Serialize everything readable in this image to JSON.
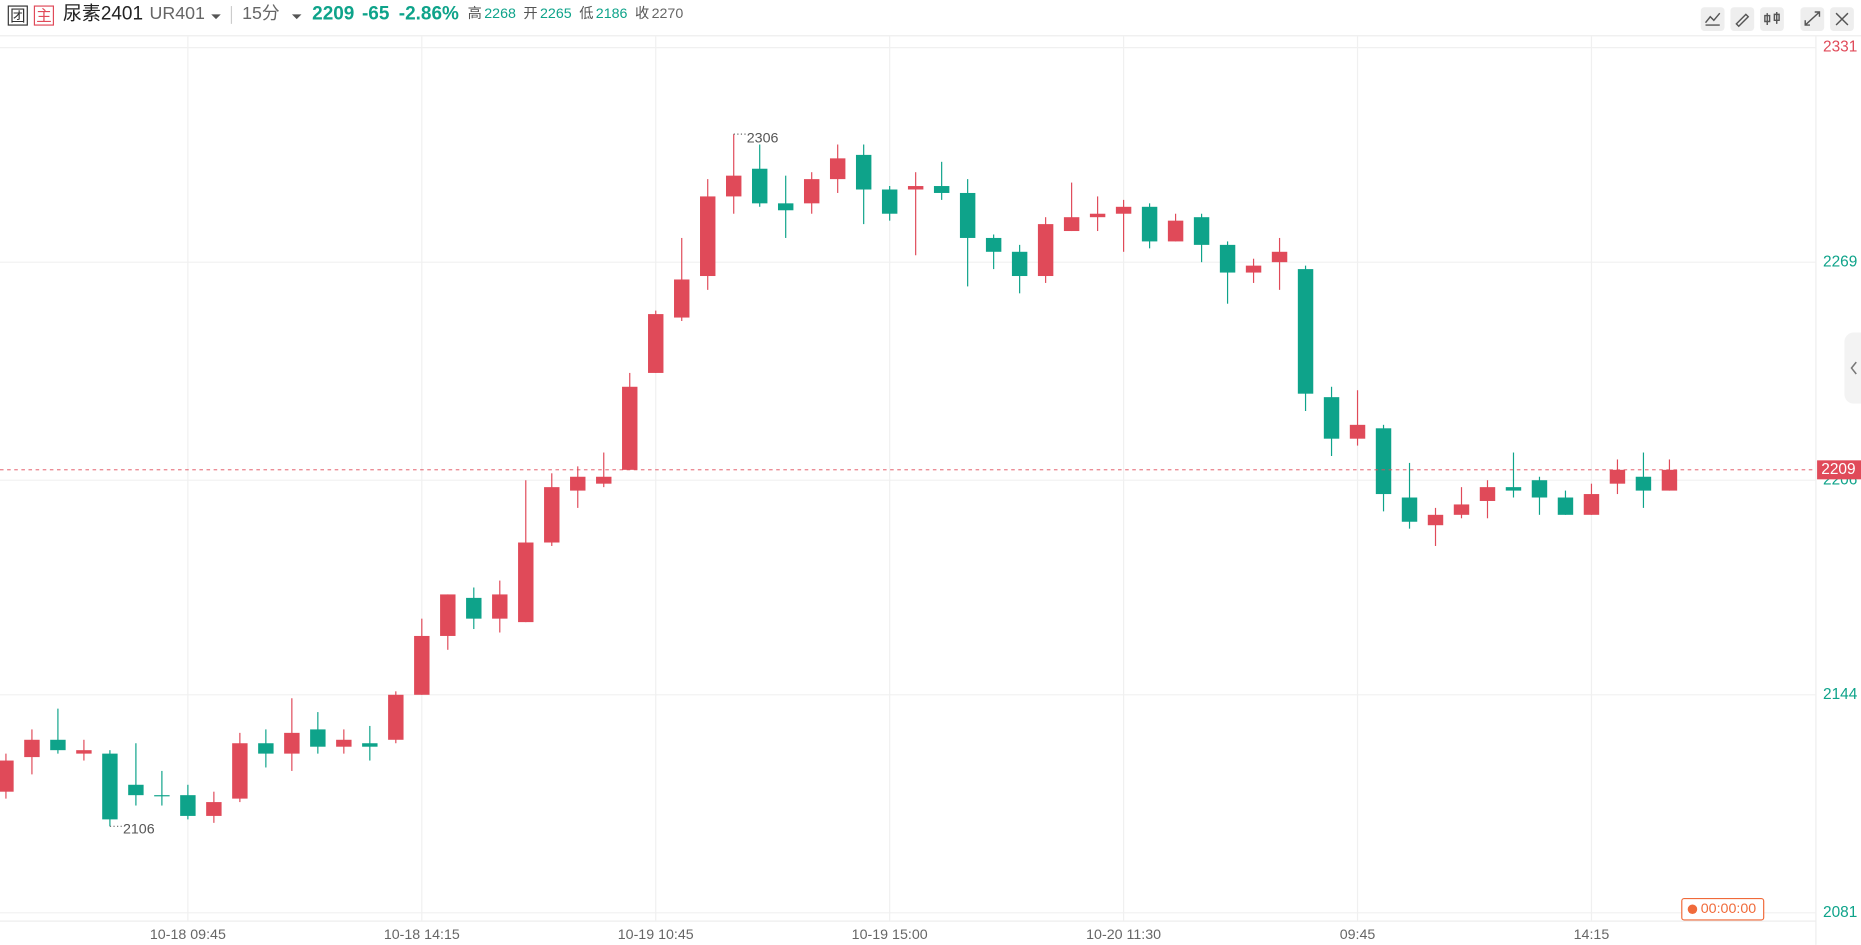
{
  "header": {
    "icon_group": "团",
    "icon_main": "主",
    "name": "尿素2401",
    "code": "UR401",
    "period": "15分",
    "price": 2209,
    "change": -65,
    "change_pct": "-2.86%",
    "high_label": "高",
    "high": 2268,
    "open_label": "开",
    "open": 2265,
    "low_label": "低",
    "low": 2186,
    "close_label": "收",
    "close": 2270,
    "countdown": "00:00:00"
  },
  "chart_data": {
    "type": "candlestick",
    "categories": [
      null,
      null,
      null,
      null,
      null,
      null,
      null,
      "10-18 09:45",
      null,
      null,
      null,
      null,
      null,
      null,
      null,
      null,
      "10-18 14:15",
      null,
      null,
      null,
      null,
      null,
      null,
      null,
      null,
      "10-19 10:45",
      null,
      null,
      null,
      null,
      null,
      null,
      null,
      null,
      "10-19 15:00",
      null,
      null,
      null,
      null,
      null,
      null,
      null,
      null,
      "10-20 11:30",
      null,
      null,
      null,
      null,
      null,
      null,
      null,
      null,
      "09:45",
      null,
      null,
      null,
      null,
      null,
      null,
      null,
      null,
      "14:15",
      null,
      null,
      null
    ],
    "open": [
      2116,
      2126,
      2131,
      2127,
      2127,
      2118,
      2115,
      2115,
      2109,
      2114,
      2130,
      2127,
      2134,
      2129,
      2130,
      2131,
      2144,
      2161,
      2172,
      2166,
      2165,
      2188,
      2203,
      2205,
      2209,
      2237,
      2253,
      2265,
      2288,
      2296,
      2286,
      2286,
      2293,
      2300,
      2290,
      2290,
      2291,
      2289,
      2276,
      2272,
      2265,
      2278,
      2282,
      2283,
      2285,
      2275,
      2282,
      2274,
      2266,
      2269,
      2267,
      2230,
      2218,
      2221,
      2201,
      2193,
      2196,
      2200,
      2204,
      2206,
      2201,
      2196,
      2205,
      2207,
      2203
    ],
    "high": [
      2127,
      2134,
      2140,
      2131,
      2128,
      2130,
      2122,
      2118,
      2116,
      2133,
      2134,
      2143,
      2139,
      2134,
      2135,
      2145,
      2166,
      2173,
      2175,
      2177,
      2206,
      2208,
      2210,
      2214,
      2237,
      2255,
      2276,
      2293,
      2306,
      2303,
      2294,
      2295,
      2303,
      2303,
      2291,
      2295,
      2298,
      2293,
      2277,
      2274,
      2282,
      2292,
      2288,
      2287,
      2286,
      2283,
      2283,
      2275,
      2270,
      2276,
      2268,
      2233,
      2232,
      2222,
      2211,
      2198,
      2204,
      2206,
      2214,
      2207,
      2203,
      2205,
      2212,
      2214,
      2212
    ],
    "low": [
      2114,
      2121,
      2127,
      2125,
      2106,
      2112,
      2112,
      2108,
      2107,
      2113,
      2123,
      2122,
      2127,
      2127,
      2125,
      2130,
      2144,
      2157,
      2163,
      2162,
      2165,
      2187,
      2198,
      2204,
      2209,
      2237,
      2252,
      2261,
      2283,
      2285,
      2276,
      2283,
      2289,
      2280,
      2281,
      2271,
      2287,
      2262,
      2267,
      2260,
      2263,
      2278,
      2278,
      2272,
      2273,
      2275,
      2269,
      2257,
      2263,
      2261,
      2226,
      2213,
      2216,
      2197,
      2192,
      2187,
      2195,
      2195,
      2201,
      2196,
      2196,
      2196,
      2202,
      2198,
      2203
    ],
    "close": [
      2125,
      2131,
      2128,
      2128,
      2108,
      2115,
      2115,
      2109,
      2113,
      2130,
      2127,
      2133,
      2129,
      2131,
      2129,
      2144,
      2161,
      2173,
      2166,
      2173,
      2188,
      2204,
      2207,
      2207,
      2233,
      2254,
      2264,
      2288,
      2294,
      2286,
      2284,
      2293,
      2299,
      2290,
      2283,
      2291,
      2289,
      2276,
      2272,
      2265,
      2280,
      2282,
      2283,
      2285,
      2275,
      2281,
      2274,
      2266,
      2268,
      2272,
      2231,
      2218,
      2222,
      2202,
      2194,
      2196,
      2199,
      2204,
      2203,
      2201,
      2196,
      2202,
      2209,
      2203,
      2209
    ],
    "up_color": "#e04a59",
    "down_color": "#0ea38a",
    "ylim": [
      2081,
      2331
    ],
    "yticks": [
      2081,
      2144,
      2206,
      2269,
      2331
    ],
    "grid": true
  }
}
